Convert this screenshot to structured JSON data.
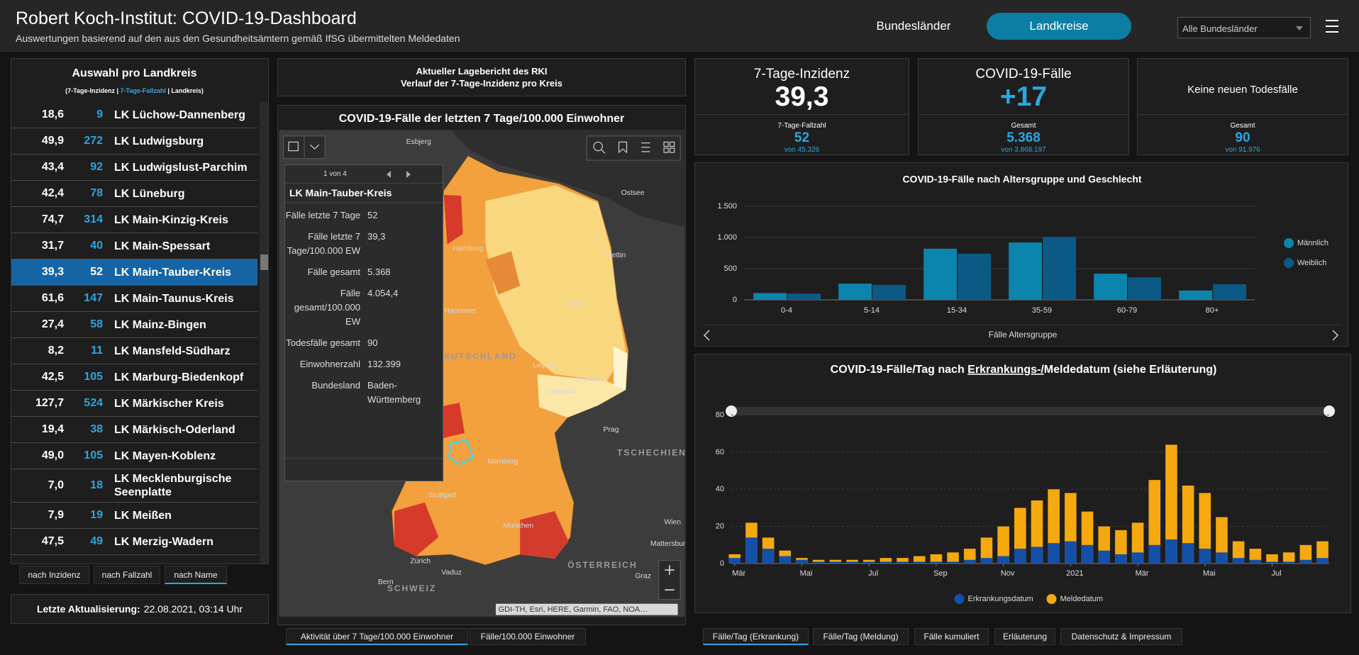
{
  "header": {
    "title": "Robert Koch-Institut: COVID-19-Dashboard",
    "subtitle": "Auswertungen basierend auf den aus den Gesundheitsämtern gemäß IfSG übermittelten Meldedaten",
    "nav": [
      "Bundesländer",
      "Landkreise"
    ],
    "active_nav": 1,
    "filter": "Alle Bundesländer"
  },
  "district_list": {
    "title": "Auswahl pro Landkreis",
    "legend": [
      "(7-Tage-Inzidenz",
      " | ",
      "7-Tage-Fallzahl",
      " | ",
      "Landkreis)"
    ],
    "rows": [
      [
        "18,6",
        "9",
        "LK Lüchow-Dannenberg"
      ],
      [
        "49,9",
        "272",
        "LK Ludwigsburg"
      ],
      [
        "43,4",
        "92",
        "LK Ludwigslust-Parchim"
      ],
      [
        "42,4",
        "78",
        "LK Lüneburg"
      ],
      [
        "74,7",
        "314",
        "LK Main-Kinzig-Kreis"
      ],
      [
        "31,7",
        "40",
        "LK Main-Spessart"
      ],
      [
        "39,3",
        "52",
        "LK Main-Tauber-Kreis"
      ],
      [
        "61,6",
        "147",
        "LK Main-Taunus-Kreis"
      ],
      [
        "27,4",
        "58",
        "LK Mainz-Bingen"
      ],
      [
        "8,2",
        "11",
        "LK Mansfeld-Südharz"
      ],
      [
        "42,5",
        "105",
        "LK Marburg-Biedenkopf"
      ],
      [
        "127,7",
        "524",
        "LK Märkischer Kreis"
      ],
      [
        "19,4",
        "38",
        "LK Märkisch-Oderland"
      ],
      [
        "49,0",
        "105",
        "LK Mayen-Koblenz"
      ],
      [
        "7,0",
        "18",
        "LK Mecklenburgische Seenplatte"
      ],
      [
        "7,9",
        "19",
        "LK Meißen"
      ],
      [
        "47,5",
        "49",
        "LK Merzig-Wadern"
      ]
    ],
    "selected": 6,
    "sort_buttons": [
      "nach Inzidenz",
      "nach Fallzahl",
      "nach Name"
    ],
    "active_sort": 2,
    "update_label": "Letzte Aktualisierung:",
    "update_value": "22.08.2021, 03:14 Uhr"
  },
  "report": {
    "lines": [
      "Aktueller Lagebericht des RKI",
      "Verlauf der 7-Tage-Inzidenz pro Kreis"
    ]
  },
  "map": {
    "title": "COVID-19-Fälle der letzten 7 Tage/100.000 Einwohner",
    "places": [
      "Esbjerg",
      "Ostsee",
      "Hamburg",
      "Stettin",
      "Hannover",
      "Berlin",
      "DEUTSCHLAND",
      "Leipzig",
      "Dresden",
      "Chemnitz",
      "Prag",
      "TSCHECHIEN",
      "Nürnberg",
      "Stuttgart",
      "Wien",
      "München",
      "Mattersburg",
      "Zürich",
      "Vaduz",
      "Bern",
      "SCHWEIZ",
      "ÖSTERREICH",
      "Graz"
    ],
    "popup": {
      "pager": "1 von 4",
      "title": "LK Main-Tauber-Kreis",
      "fields": [
        [
          "Fälle letzte 7 Tage",
          "52"
        ],
        [
          "Fälle letzte 7 Tage/100.000 EW",
          "39,3"
        ],
        [
          "Fälle gesamt",
          "5.368"
        ],
        [
          "Fälle gesamt/100.000 EW",
          "4.054,4"
        ],
        [
          "Todesfälle gesamt",
          "90"
        ],
        [
          "Einwohnerzahl",
          "132.399"
        ],
        [
          "Bundesland",
          "Baden-Württemberg"
        ]
      ]
    },
    "attribution": "GDI-TH, Esri, HERE, Garmin, FAO, NOA…",
    "tabs": [
      "Aktivität über 7 Tage/100.000 Einwohner",
      "Fälle/100.000 Einwohner"
    ],
    "active_tab": 0
  },
  "cards": [
    {
      "title": "7-Tage-Inzidenz",
      "value": "39,3",
      "sub_label": "7-Tage-Fallzahl",
      "sub_value": "52",
      "note": "von 45.326"
    },
    {
      "title": "COVID-19-Fälle",
      "value": "+17",
      "sub_label": "Gesamt",
      "sub_value": "5.368",
      "note": "von 3.868.197"
    },
    {
      "title": "Keine neuen Todesfälle",
      "sub_label": "Gesamt",
      "sub_value": "90",
      "note": "von 91.976"
    }
  ],
  "chart_data": [
    {
      "type": "bar",
      "title": "COVID-19-Fälle nach Altersgruppe und Geschlecht",
      "x_label": "Fälle Altersgruppe",
      "categories": [
        "0-4",
        "5-14",
        "15-34",
        "35-59",
        "60-79",
        "80+"
      ],
      "series": [
        {
          "name": "Männlich",
          "color": "#0b84ae",
          "values": [
            110,
            260,
            820,
            920,
            420,
            150
          ]
        },
        {
          "name": "Weiblich",
          "color": "#0b5a86",
          "values": [
            100,
            240,
            740,
            1010,
            360,
            250
          ]
        }
      ],
      "ylim": [
        0,
        1500
      ],
      "yticks": [
        0,
        500,
        {
          "value": 1000,
          "label": "1.000"
        },
        {
          "value": 1500,
          "label": "1.500"
        }
      ],
      "grid": true,
      "legend": "right"
    },
    {
      "type": "bar",
      "title_parts": [
        "COVID-19-Fälle/Tag nach ",
        "Erkrankungs-/",
        "Meldedatum (siehe Erläuterung)"
      ],
      "x": [
        0,
        0.5,
        1,
        1.5,
        2,
        2.5,
        3,
        3.5,
        4,
        4.5,
        5,
        5.5,
        6,
        6.5,
        7,
        7.5,
        8,
        8.5,
        9,
        9.5,
        10,
        10.5,
        11,
        11.5,
        12,
        12.5,
        13,
        13.5,
        14,
        14.5,
        15,
        15.5,
        16,
        16.5,
        17,
        17.5
      ],
      "series": [
        {
          "name": "Meldedatum",
          "color": "#f5a90f",
          "values": [
            5,
            22,
            14,
            7,
            3,
            2,
            2,
            2,
            2,
            3,
            3,
            4,
            5,
            6,
            8,
            14,
            20,
            30,
            34,
            40,
            38,
            28,
            20,
            18,
            22,
            45,
            64,
            42,
            38,
            25,
            12,
            8,
            5,
            6,
            10,
            12
          ]
        },
        {
          "name": "Erkrankungsdatum",
          "color": "#1450a8",
          "values": [
            3,
            14,
            8,
            4,
            2,
            1,
            1,
            1,
            1,
            1,
            1,
            1,
            1,
            1,
            2,
            3,
            4,
            8,
            9,
            11,
            12,
            10,
            7,
            5,
            6,
            10,
            13,
            11,
            8,
            6,
            3,
            2,
            1,
            1,
            2,
            3
          ]
        }
      ],
      "legend_order": [
        1,
        0
      ],
      "xlim": [
        -0.1,
        17.7
      ],
      "xticks": [
        {
          "value": 0,
          "label": "Mär"
        },
        {
          "value": 2,
          "label": "Mai"
        },
        {
          "value": 4,
          "label": "Jul"
        },
        {
          "value": 6,
          "label": "Sep"
        },
        {
          "value": 8,
          "label": "Nov"
        },
        {
          "value": 10,
          "label": "2021"
        },
        {
          "value": 12,
          "label": "Mär"
        },
        {
          "value": 14,
          "label": "Mai"
        },
        {
          "value": 16,
          "label": "Jul"
        }
      ],
      "ylim": [
        0,
        84
      ],
      "yticks": [
        0,
        20,
        40,
        60,
        80
      ],
      "grid": true,
      "legend": "bottom"
    }
  ],
  "bottom_tabs": {
    "items": [
      "Fälle/Tag (Erkrankung)",
      "Fälle/Tag (Meldung)",
      "Fälle kumuliert",
      "Erläuterung",
      "Datenschutz & Impressum"
    ],
    "active": 0
  }
}
